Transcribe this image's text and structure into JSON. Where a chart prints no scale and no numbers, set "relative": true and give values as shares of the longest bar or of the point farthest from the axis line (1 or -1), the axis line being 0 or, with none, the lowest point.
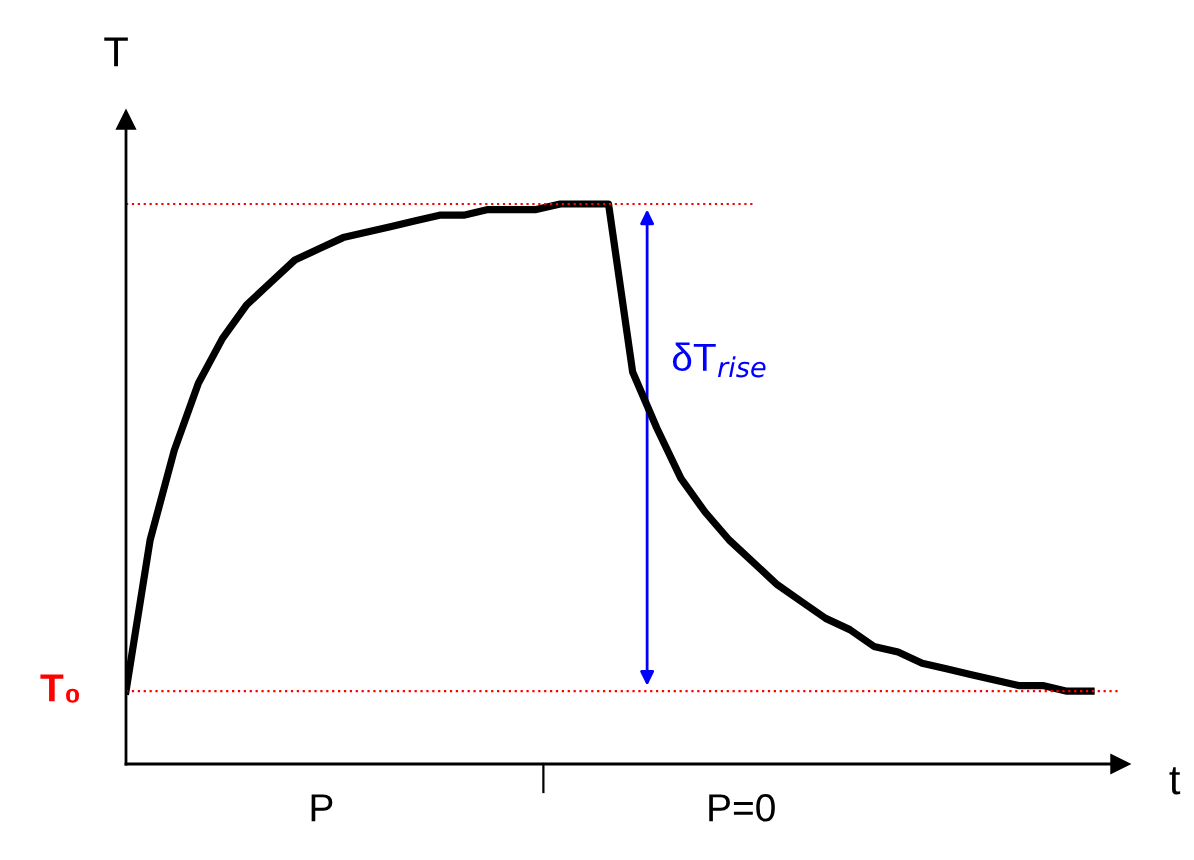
{
  "chart_data": {
    "type": "line",
    "relative": true,
    "xlabel": "t",
    "ylabel": "T",
    "categories": [
      null,
      null,
      null,
      null,
      null,
      null,
      null,
      null,
      null,
      null,
      null,
      null,
      null,
      null,
      null,
      null,
      null,
      null,
      null,
      null,
      null,
      null,
      null,
      null,
      null,
      null,
      null,
      null,
      null,
      null,
      null,
      null,
      null,
      null,
      null,
      null,
      null,
      null,
      null,
      null,
      null
    ],
    "series": [
      {
        "color": "#000000",
        "values": [
          0.13,
          0.4,
          0.56,
          0.68,
          0.76,
          0.82,
          0.86,
          0.9,
          0.92,
          0.94,
          0.95,
          0.96,
          0.97,
          0.98,
          0.98,
          0.99,
          0.99,
          0.99,
          1.0,
          1.0,
          1.0,
          0.7,
          0.6,
          0.51,
          0.45,
          0.4,
          0.36,
          0.32,
          0.29,
          0.26,
          0.24,
          0.21,
          0.2,
          0.18,
          0.17,
          0.16,
          0.15,
          0.14,
          0.14,
          0.13,
          0.13
        ]
      }
    ],
    "ref_lines": [
      {
        "axis": "y",
        "value": 0.13,
        "label": "T₀",
        "color": "#ff0000",
        "line_style": "dotted"
      },
      {
        "axis": "y",
        "value": 1.0,
        "color": "#ff0000",
        "line_style": "dotted"
      }
    ],
    "annotations": [
      "δT$_{rise}$",
      "P",
      "P=0"
    ],
    "legend": false,
    "marker": "none",
    "line_style": "solid"
  }
}
